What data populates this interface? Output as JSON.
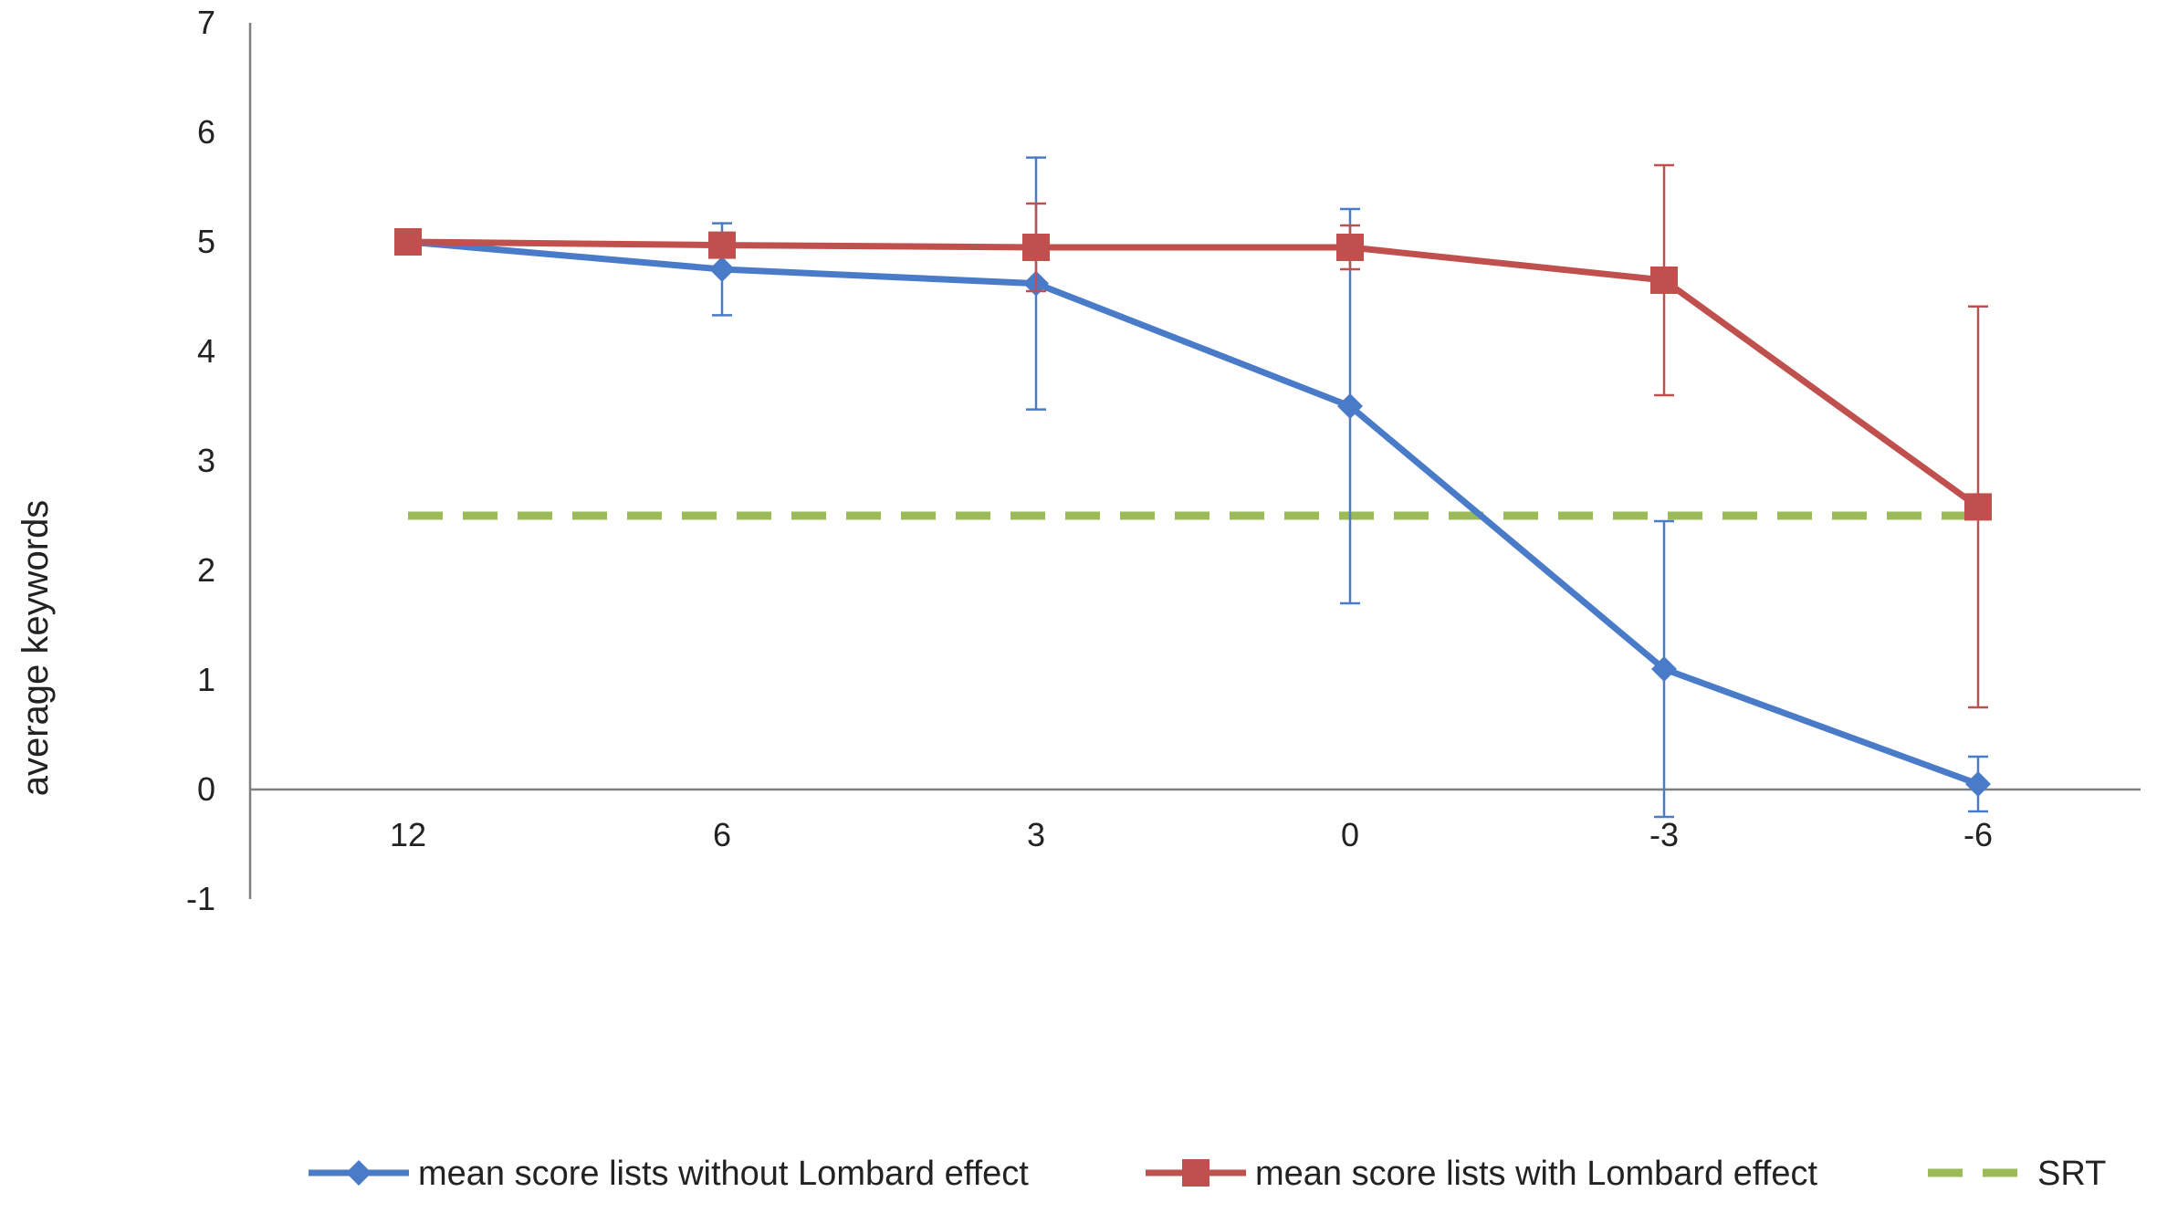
{
  "chart_data": {
    "type": "line",
    "title": "",
    "xlabel": "",
    "ylabel": "average keywords",
    "categories": [
      "12",
      "6",
      "3",
      "0",
      "-3",
      "-6"
    ],
    "ylim": [
      -1,
      7
    ],
    "yticks": [
      7,
      6,
      5,
      4,
      3,
      2,
      1,
      0,
      -1
    ],
    "grid": false,
    "legend_position": "bottom",
    "series": [
      {
        "name": "mean score lists without Lombard effect",
        "values": [
          5.0,
          4.75,
          4.62,
          3.5,
          1.1,
          0.05
        ],
        "error": [
          0.0,
          0.42,
          1.15,
          1.8,
          1.35,
          0.25
        ],
        "color": "#4a7bc8",
        "marker": "diamond"
      },
      {
        "name": "mean score lists with Lombard effect",
        "values": [
          5.0,
          4.97,
          4.95,
          4.95,
          4.65,
          2.58
        ],
        "error": [
          0.0,
          0.0,
          0.4,
          0.2,
          1.05,
          1.83
        ],
        "color": "#c0504d",
        "marker": "square"
      },
      {
        "name": "SRT",
        "values": [
          2.5,
          2.5,
          2.5,
          2.5,
          2.5,
          2.5
        ],
        "color": "#9bbb59",
        "dashed": true
      }
    ]
  }
}
